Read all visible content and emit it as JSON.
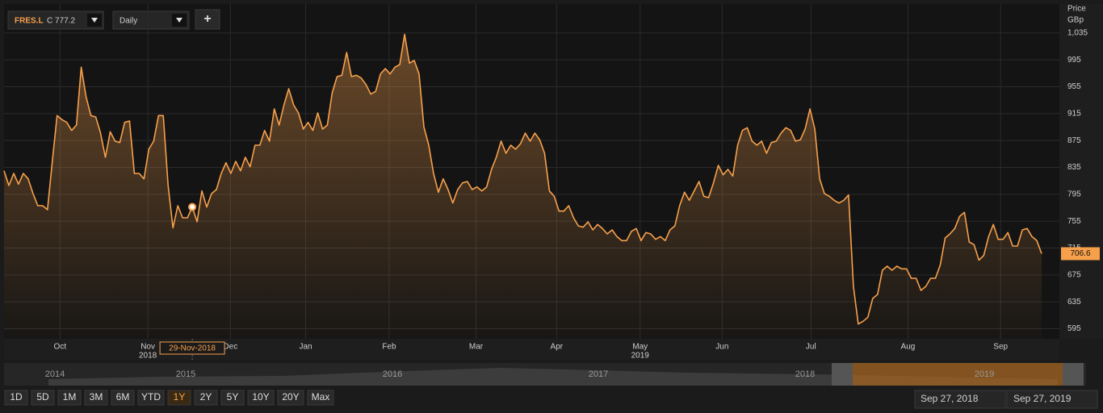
{
  "toolbar": {
    "symbol": "FRES.L",
    "quote": "C 777.2",
    "interval": "Daily",
    "add": "+"
  },
  "chart_data": {
    "type": "line",
    "axis_title": "Price",
    "axis_unit": "GBp",
    "series": [
      {
        "name": "FRES.L",
        "color": "#f7a04b",
        "values": [
          830,
          808,
          826,
          810,
          826,
          818,
          796,
          778,
          778,
          772,
          844,
          912,
          906,
          902,
          890,
          898,
          984,
          940,
          912,
          910,
          886,
          850,
          888,
          874,
          872,
          902,
          904,
          826,
          826,
          818,
          862,
          874,
          912,
          912,
          808,
          745,
          778,
          760,
          760,
          776,
          754,
          800,
          776,
          796,
          802,
          826,
          842,
          826,
          844,
          830,
          850,
          836,
          868,
          868,
          890,
          874,
          922,
          898,
          928,
          952,
          928,
          916,
          892,
          902,
          890,
          916,
          892,
          898,
          946,
          970,
          972,
          1006,
          970,
          972,
          968,
          958,
          944,
          948,
          974,
          982,
          974,
          984,
          988,
          1033,
          990,
          994,
          974,
          895,
          868,
          826,
          798,
          818,
          802,
          782,
          802,
          812,
          814,
          802,
          806,
          800,
          806,
          832,
          850,
          874,
          856,
          868,
          862,
          870,
          886,
          874,
          886,
          876,
          856,
          800,
          792,
          770,
          770,
          778,
          760,
          748,
          746,
          754,
          742,
          750,
          744,
          736,
          742,
          732,
          726,
          726,
          740,
          744,
          726,
          738,
          736,
          728,
          732,
          726,
          742,
          748,
          778,
          798,
          786,
          800,
          814,
          792,
          790,
          812,
          838,
          824,
          832,
          822,
          868,
          890,
          894,
          874,
          868,
          874,
          856,
          872,
          874,
          886,
          894,
          890,
          874,
          876,
          892,
          922,
          892,
          818,
          796,
          792,
          786,
          782,
          786,
          794,
          658,
          602,
          606,
          612,
          640,
          646,
          682,
          688,
          682,
          688,
          684,
          684,
          670,
          670,
          652,
          658,
          670,
          670,
          690,
          730,
          736,
          744,
          762,
          768,
          724,
          720,
          697,
          704,
          732,
          750,
          728,
          728,
          738,
          718,
          718,
          742,
          744,
          732,
          726,
          706.6
        ]
      }
    ],
    "xlim": [
      0,
      215
    ],
    "xticks": [
      {
        "value": 11.6,
        "label": "Oct"
      },
      {
        "value": 29.8,
        "label": "Nov"
      },
      {
        "value": 46.9,
        "label": "Dec"
      },
      {
        "value": 62.5,
        "label": "Jan"
      },
      {
        "value": 79.8,
        "label": "Feb"
      },
      {
        "value": 97.8,
        "label": "Mar"
      },
      {
        "value": 114.5,
        "label": "Apr"
      },
      {
        "value": 131.8,
        "label": "May"
      },
      {
        "value": 148.8,
        "label": "Jun"
      },
      {
        "value": 167.2,
        "label": "Jul"
      },
      {
        "value": 187.3,
        "label": "Aug"
      },
      {
        "value": 206.5,
        "label": "Sep"
      }
    ],
    "year_ticks": [
      {
        "value": 29.8,
        "label": "2018"
      },
      {
        "value": 131.8,
        "label": "2019"
      }
    ],
    "ylim": [
      580,
      1078
    ],
    "yticks": [
      {
        "value": 1035,
        "label": "1,035"
      },
      995,
      955,
      915,
      875,
      835,
      795,
      755,
      715,
      675,
      635,
      595
    ],
    "grid": true,
    "cursor": {
      "index": 39,
      "label": "29-Nov-2018"
    }
  },
  "navigator": {
    "years": [
      "2014",
      "2015",
      "2016",
      "2017",
      "2018",
      "2019"
    ]
  },
  "range_buttons": [
    "1D",
    "5D",
    "1M",
    "3M",
    "6M",
    "YTD",
    "1Y",
    "2Y",
    "5Y",
    "10Y",
    "20Y",
    "Max"
  ],
  "range_selected": 6,
  "date_range": {
    "from": "Sep 27, 2018",
    "to": "Sep 27, 2019"
  }
}
